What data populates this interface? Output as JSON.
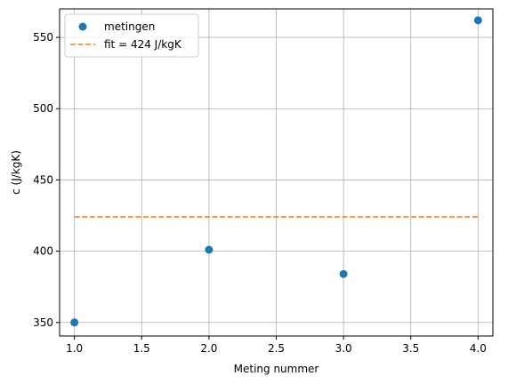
{
  "chart_data": {
    "type": "scatter",
    "title": "",
    "xlabel": "Meting nummer",
    "ylabel": "c (J/kgK)",
    "xlim": [
      0.89,
      4.11
    ],
    "ylim": [
      340.5,
      570.0
    ],
    "grid": true,
    "legend_position": "top-left",
    "x_ticks": [
      1.0,
      1.5,
      2.0,
      2.5,
      3.0,
      3.5,
      4.0
    ],
    "x_tick_labels": [
      "1.0",
      "1.5",
      "2.0",
      "2.5",
      "3.0",
      "3.5",
      "4.0"
    ],
    "y_ticks": [
      350,
      400,
      450,
      500,
      550
    ],
    "y_tick_labels": [
      "350",
      "400",
      "450",
      "500",
      "550"
    ],
    "series": [
      {
        "name": "metingen",
        "kind": "scatter",
        "color": "#1f77b4",
        "x": [
          1,
          2,
          3,
          4
        ],
        "y": [
          350,
          401,
          384,
          562
        ]
      },
      {
        "name": "fit = 424 J/kgK",
        "kind": "line",
        "style": "dashed",
        "color": "#ff7f0e",
        "x": [
          1,
          4
        ],
        "y": [
          424,
          424
        ]
      }
    ]
  }
}
